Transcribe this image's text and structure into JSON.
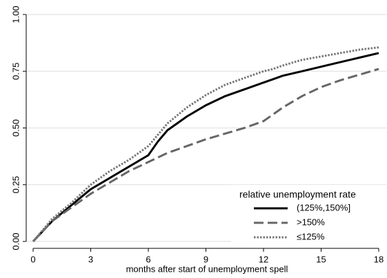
{
  "chart_data": {
    "type": "line",
    "x_label": "months after start of unemployment spell",
    "legend_title": "relative unemployment rate",
    "legend": "lower right",
    "grid": true,
    "x": [
      0,
      1,
      2,
      3,
      4,
      5,
      6,
      6.5,
      7,
      8,
      9,
      10,
      11,
      12,
      12.5,
      13,
      14,
      15,
      16,
      17,
      18
    ],
    "series": [
      {
        "name": "(125%,150%]",
        "color": "#000000",
        "style": "solid",
        "values": [
          0,
          0.09,
          0.16,
          0.23,
          0.28,
          0.33,
          0.38,
          0.44,
          0.49,
          0.55,
          0.6,
          0.64,
          0.67,
          0.7,
          0.715,
          0.73,
          0.75,
          0.77,
          0.79,
          0.81,
          0.83
        ]
      },
      {
        "name": ">150%",
        "color": "#666666",
        "style": "dash",
        "values": [
          0,
          0.09,
          0.15,
          0.21,
          0.26,
          0.31,
          0.35,
          0.37,
          0.39,
          0.42,
          0.45,
          0.475,
          0.5,
          0.53,
          0.56,
          0.59,
          0.64,
          0.68,
          0.71,
          0.735,
          0.76
        ]
      },
      {
        "name": "≤125%",
        "color": "#777777",
        "style": "dot",
        "values": [
          0,
          0.1,
          0.17,
          0.25,
          0.31,
          0.36,
          0.42,
          0.47,
          0.52,
          0.59,
          0.645,
          0.69,
          0.72,
          0.75,
          0.76,
          0.775,
          0.8,
          0.815,
          0.83,
          0.845,
          0.855
        ]
      }
    ],
    "xlim": [
      0,
      18
    ],
    "xticks": [
      0,
      3,
      6,
      9,
      12,
      15,
      18
    ],
    "ylim": [
      0,
      1
    ],
    "yticks": [
      {
        "value": 0,
        "label": "0.00"
      },
      {
        "value": 0.25,
        "label": "0.25"
      },
      {
        "value": 0.5,
        "label": "0.50"
      },
      {
        "value": 0.75,
        "label": "0.75"
      },
      {
        "value": 1,
        "label": "1.00"
      }
    ]
  }
}
